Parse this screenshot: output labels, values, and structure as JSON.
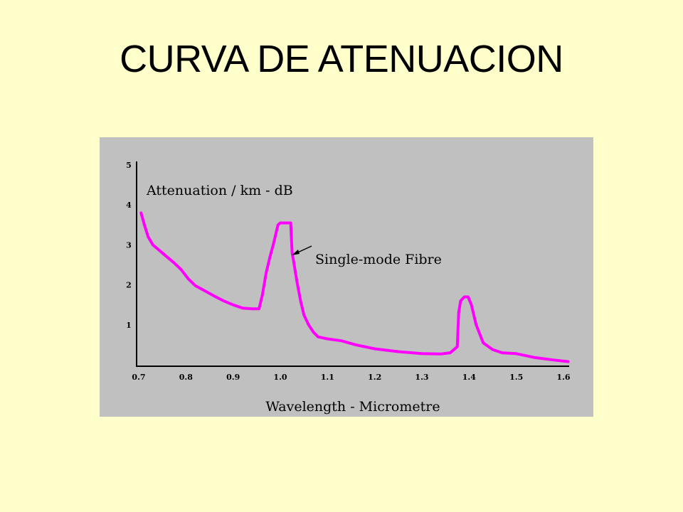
{
  "slide": {
    "title": "CURVA DE ATENUACION"
  },
  "chart_data": {
    "type": "line",
    "title": "",
    "ylabel": "Attenuation / km - dB",
    "xlabel": "Wavelength - Micrometre",
    "xlim": [
      0.7,
      1.6
    ],
    "ylim": [
      0,
      5
    ],
    "x_ticks": [
      "0.7",
      "0.8",
      "0.9",
      "1.0",
      "1.1",
      "1.2",
      "1.3",
      "1.4",
      "1.5",
      "1.6"
    ],
    "y_ticks": [
      "1",
      "2",
      "3",
      "4",
      "5"
    ],
    "grid": false,
    "line_color": "#ff00ff",
    "annotation": "Single-mode Fibre",
    "series": [
      {
        "x": [
          0.705,
          0.712,
          0.72,
          0.73,
          0.745,
          0.76,
          0.775,
          0.79,
          0.805,
          0.82,
          0.84,
          0.86,
          0.88,
          0.9,
          0.92,
          0.94,
          0.955,
          0.962,
          0.97,
          0.978,
          0.985,
          0.99,
          0.995,
          1.0,
          1.01,
          1.022,
          1.025,
          1.028,
          1.035,
          1.043,
          1.05,
          1.06,
          1.07,
          1.08,
          1.1,
          1.13,
          1.16,
          1.2,
          1.25,
          1.3,
          1.34,
          1.36,
          1.375,
          1.378,
          1.382,
          1.39,
          1.398,
          1.405,
          1.415,
          1.43,
          1.45,
          1.47,
          1.5,
          1.54,
          1.58,
          1.61
        ],
        "y": [
          3.8,
          3.5,
          3.2,
          3.0,
          2.85,
          2.7,
          2.55,
          2.38,
          2.15,
          1.98,
          1.85,
          1.72,
          1.6,
          1.5,
          1.42,
          1.4,
          1.4,
          1.75,
          2.3,
          2.7,
          3.0,
          3.25,
          3.5,
          3.55,
          3.55,
          3.55,
          2.8,
          2.6,
          2.1,
          1.6,
          1.25,
          1.0,
          0.82,
          0.7,
          0.65,
          0.6,
          0.5,
          0.4,
          0.33,
          0.28,
          0.27,
          0.3,
          0.45,
          1.3,
          1.6,
          1.7,
          1.7,
          1.5,
          1.0,
          0.55,
          0.38,
          0.3,
          0.28,
          0.18,
          0.12,
          0.08
        ]
      }
    ]
  }
}
